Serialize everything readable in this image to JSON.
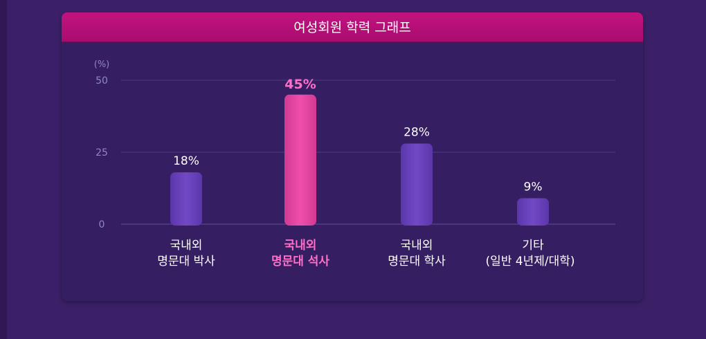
{
  "chart_data": {
    "type": "bar",
    "title": "여성회원 학력 그래프",
    "ylabel": "(%)",
    "ylim": [
      0,
      50
    ],
    "yticks": [
      "0",
      "25",
      "50"
    ],
    "categories": [
      [
        "국내외",
        "명문대 박사"
      ],
      [
        "국내외",
        "명문대 석사"
      ],
      [
        "국내외",
        "명문대 학사"
      ],
      [
        "기타",
        "(일반 4년제/대학)"
      ]
    ],
    "values": [
      18,
      45,
      28,
      9
    ],
    "value_labels": [
      "18%",
      "45%",
      "28%",
      "9%"
    ],
    "highlight_index": 1,
    "grid": true
  },
  "colors": {
    "bar": "#6a43be",
    "bar_highlight": "#e6449f",
    "header": "#b30f74",
    "background": "#3b2068",
    "panel": "#351f62"
  }
}
